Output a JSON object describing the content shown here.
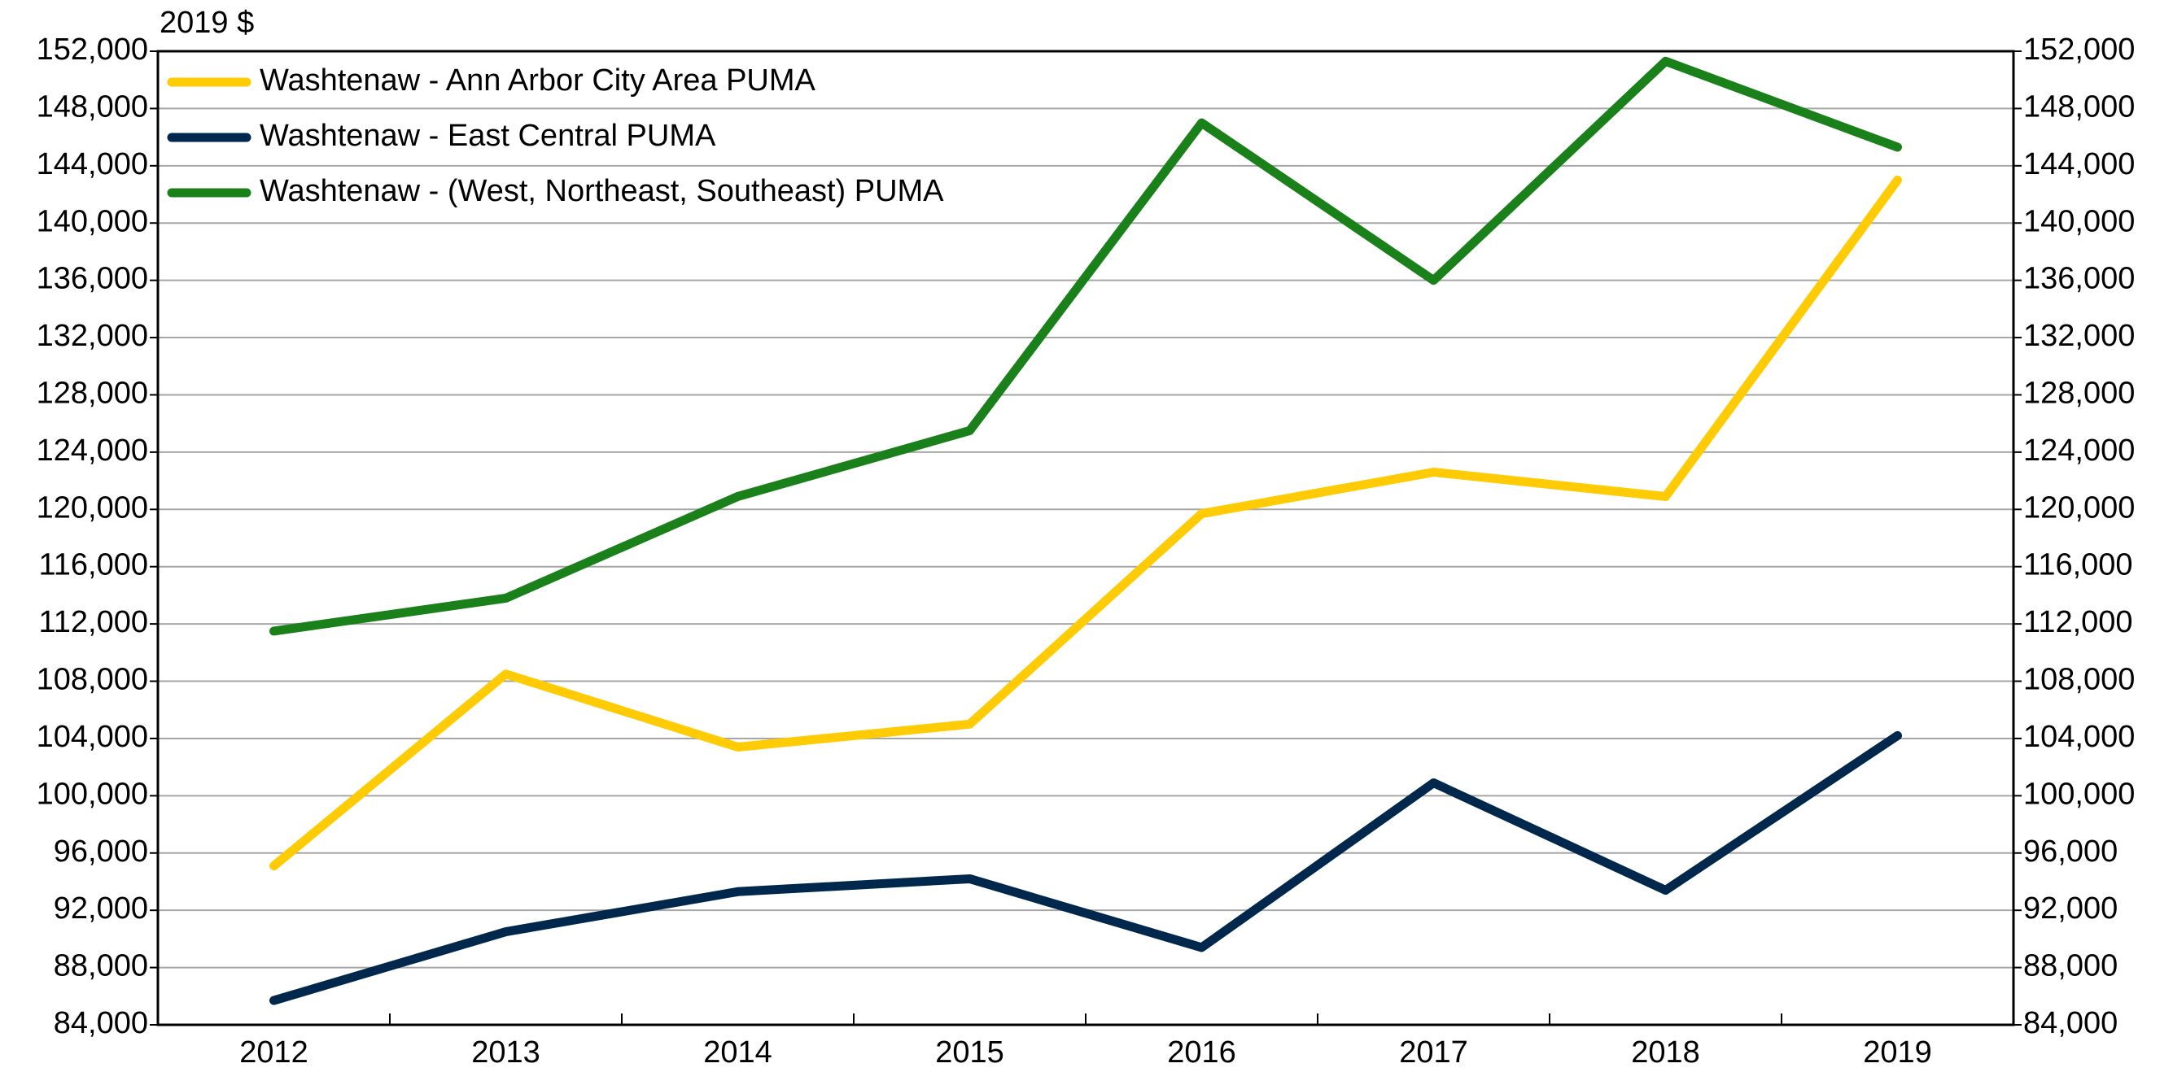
{
  "chart_data": {
    "type": "line",
    "y_label": "2019 $",
    "categories": [
      "2012",
      "2013",
      "2014",
      "2015",
      "2016",
      "2017",
      "2018",
      "2019"
    ],
    "series": [
      {
        "name": "Washtenaw - Ann Arbor City Area PUMA",
        "color": "#ffcb05",
        "values": [
          95100,
          108500,
          103400,
          105000,
          119700,
          122600,
          120900,
          143000
        ]
      },
      {
        "name": "Washtenaw - East Central PUMA",
        "color": "#00274c",
        "values": [
          85700,
          90500,
          93300,
          94200,
          89400,
          100900,
          93400,
          104200
        ]
      },
      {
        "name": "Washtenaw - (West, Northeast, Southeast) PUMA",
        "color": "#1a801a",
        "values": [
          111500,
          113800,
          120900,
          125500,
          147000,
          136000,
          151300,
          145300
        ]
      }
    ],
    "ylim": [
      84000,
      152000
    ],
    "yticks": [
      {
        "value": 84000,
        "label": "84,000"
      },
      {
        "value": 88000,
        "label": "88,000"
      },
      {
        "value": 92000,
        "label": "92,000"
      },
      {
        "value": 96000,
        "label": "96,000"
      },
      {
        "value": 100000,
        "label": "100,000"
      },
      {
        "value": 104000,
        "label": "104,000"
      },
      {
        "value": 108000,
        "label": "108,000"
      },
      {
        "value": 112000,
        "label": "112,000"
      },
      {
        "value": 116000,
        "label": "116,000"
      },
      {
        "value": 120000,
        "label": "120,000"
      },
      {
        "value": 124000,
        "label": "124,000"
      },
      {
        "value": 128000,
        "label": "128,000"
      },
      {
        "value": 132000,
        "label": "132,000"
      },
      {
        "value": 136000,
        "label": "136,000"
      },
      {
        "value": 140000,
        "label": "140,000"
      },
      {
        "value": 144000,
        "label": "144,000"
      },
      {
        "value": 148000,
        "label": "148,000"
      },
      {
        "value": 152000,
        "label": "152,000"
      }
    ],
    "y2lim": [
      84000,
      152000
    ],
    "y2ticks": [
      {
        "value": 84000,
        "label": "84,000"
      },
      {
        "value": 88000,
        "label": "88,000"
      },
      {
        "value": 92000,
        "label": "92,000"
      },
      {
        "value": 96000,
        "label": "96,000"
      },
      {
        "value": 100000,
        "label": "100,000"
      },
      {
        "value": 104000,
        "label": "104,000"
      },
      {
        "value": 108000,
        "label": "108,000"
      },
      {
        "value": 112000,
        "label": "112,000"
      },
      {
        "value": 116000,
        "label": "116,000"
      },
      {
        "value": 120000,
        "label": "120,000"
      },
      {
        "value": 124000,
        "label": "124,000"
      },
      {
        "value": 128000,
        "label": "128,000"
      },
      {
        "value": 132000,
        "label": "132,000"
      },
      {
        "value": 136000,
        "label": "136,000"
      },
      {
        "value": 140000,
        "label": "140,000"
      },
      {
        "value": 144000,
        "label": "144,000"
      },
      {
        "value": 148000,
        "label": "148,000"
      },
      {
        "value": 152000,
        "label": "152,000"
      }
    ],
    "grid": true,
    "legend": "upper-left"
  }
}
